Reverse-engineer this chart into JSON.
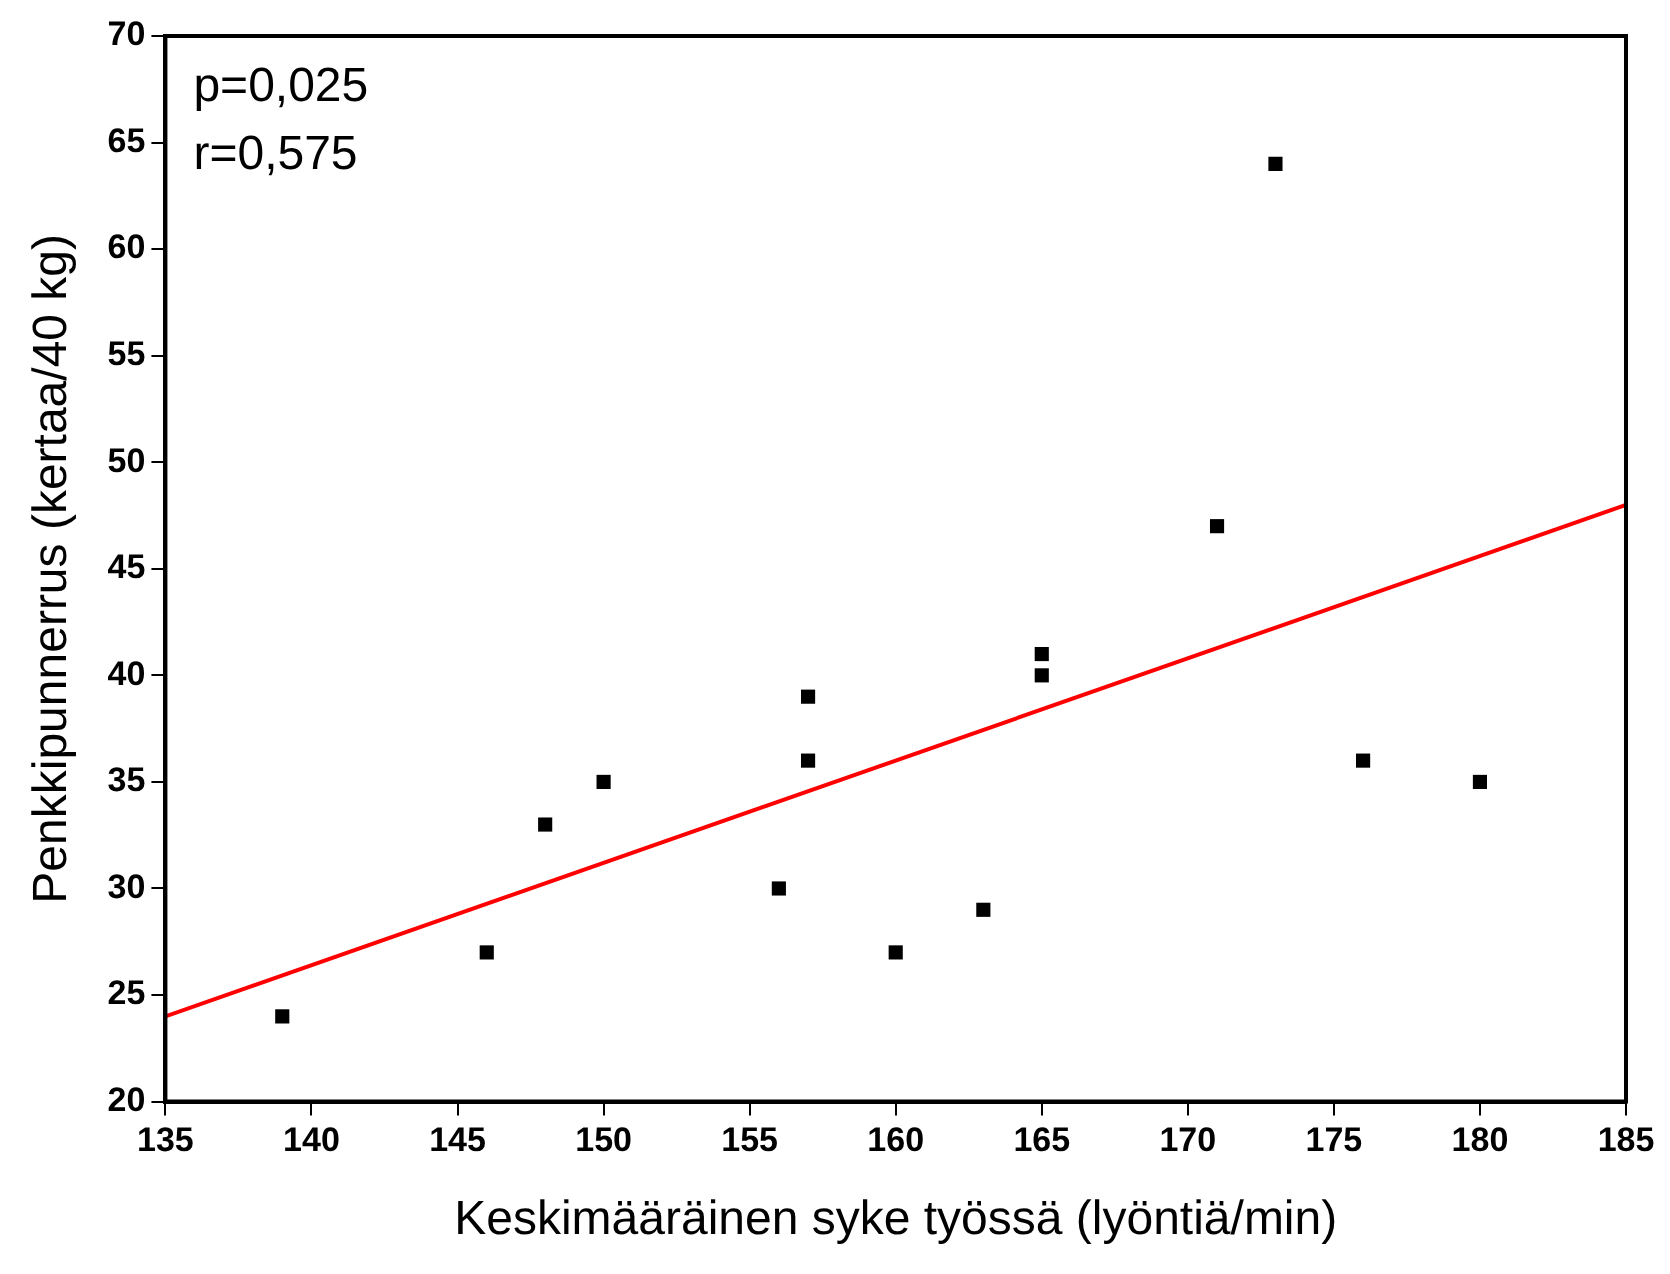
{
  "chart_data": {
    "type": "scatter",
    "xlabel": "Keskimääräinen syke työssä (lyöntiä/min)",
    "ylabel": "Penkkipunnerrus (kertaa/40 kg)",
    "annotations": [
      "p=0,025",
      "r=0,575"
    ],
    "xlim": [
      135,
      185
    ],
    "xticks": [
      135,
      140,
      145,
      150,
      155,
      160,
      165,
      170,
      175,
      180,
      185
    ],
    "ylim": [
      20,
      70
    ],
    "yticks": [
      20,
      25,
      30,
      35,
      40,
      45,
      50,
      55,
      60,
      65,
      70
    ],
    "marker": "square",
    "series": [
      {
        "color": "#000000",
        "x": [
          139,
          146,
          148,
          150,
          156,
          157,
          157,
          160,
          163,
          165,
          165,
          171,
          173,
          176,
          180
        ],
        "values": [
          24,
          27,
          33,
          35,
          30,
          39,
          36,
          27,
          29,
          41,
          40,
          47,
          64,
          36,
          35
        ]
      },
      {
        "type": "line",
        "color": "#ff0000",
        "marker": "none",
        "x": [
          135,
          185
        ],
        "values": [
          24,
          48
        ]
      }
    ]
  }
}
